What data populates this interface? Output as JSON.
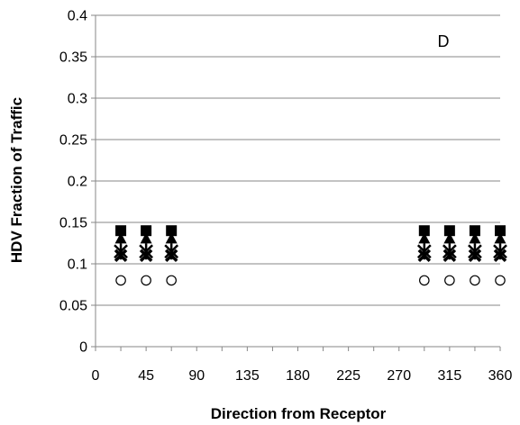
{
  "chart_data": {
    "type": "scatter",
    "title": "",
    "panel_label": "D",
    "xlabel": "Direction from Receptor",
    "ylabel": "HDV Fraction of Traffic",
    "xlim": [
      0,
      360
    ],
    "ylim": [
      0,
      0.4
    ],
    "x_ticks": [
      "0",
      "45",
      "90",
      "135",
      "180",
      "225",
      "270",
      "315",
      "360"
    ],
    "y_ticks": [
      "0",
      "0.05",
      "0.1",
      "0.15",
      "0.2",
      "0.25",
      "0.3",
      "0.35",
      "0.4"
    ],
    "grid": "horizontal",
    "legend": "none",
    "series": [
      {
        "marker": "square-filled",
        "x": [
          22.5,
          45,
          67.5,
          292.5,
          315,
          337.5,
          360
        ],
        "y": [
          0.14,
          0.14,
          0.14,
          0.14,
          0.14,
          0.14,
          0.14
        ]
      },
      {
        "marker": "triangle-filled",
        "x": [
          22.5,
          45,
          67.5,
          292.5,
          315,
          337.5,
          360
        ],
        "y": [
          0.13,
          0.13,
          0.13,
          0.13,
          0.13,
          0.13,
          0.13
        ]
      },
      {
        "marker": "star",
        "x": [
          22.5,
          45,
          67.5,
          292.5,
          315,
          337.5,
          360
        ],
        "y": [
          0.115,
          0.115,
          0.115,
          0.115,
          0.115,
          0.115,
          0.115
        ]
      },
      {
        "marker": "x-cross",
        "x": [
          22.5,
          45,
          67.5,
          292.5,
          315,
          337.5,
          360
        ],
        "y": [
          0.11,
          0.11,
          0.11,
          0.11,
          0.11,
          0.11,
          0.11
        ]
      },
      {
        "marker": "circle-open",
        "x": [
          22.5,
          45,
          67.5,
          292.5,
          315,
          337.5,
          360
        ],
        "y": [
          0.08,
          0.08,
          0.08,
          0.08,
          0.08,
          0.08,
          0.08
        ]
      }
    ]
  }
}
